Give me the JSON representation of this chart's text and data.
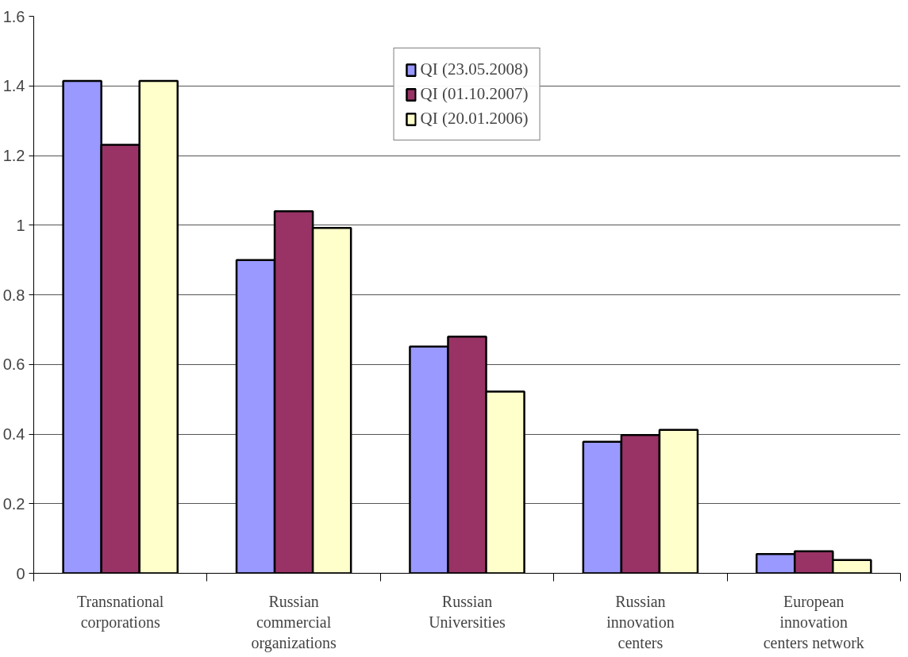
{
  "chart_data": {
    "type": "bar",
    "categories": [
      "Transnational corporations",
      "Russian commercial organizations",
      "Russian Universities",
      "Russian innovation centers",
      "European innovation centers network"
    ],
    "series": [
      {
        "name": "QI (23.05.2008)",
        "color": "#9999ff",
        "values": [
          1.414,
          0.9,
          0.651,
          0.378,
          0.055
        ]
      },
      {
        "name": "QI (01.10.2007)",
        "color": "#993366",
        "values": [
          1.231,
          1.04,
          0.68,
          0.397,
          0.063
        ]
      },
      {
        "name": "QI (20.01.2006)",
        "color": "#ffffcc",
        "values": [
          1.414,
          0.992,
          0.522,
          0.412,
          0.038
        ]
      }
    ],
    "ylim": [
      0,
      1.6
    ],
    "yticks": [
      {
        "value": 0,
        "label": "0"
      },
      0.2,
      0.4,
      0.6,
      0.8,
      {
        "value": 1,
        "label": "1"
      },
      1.2,
      1.4,
      1.6
    ],
    "grid": "y",
    "legend": "top"
  }
}
